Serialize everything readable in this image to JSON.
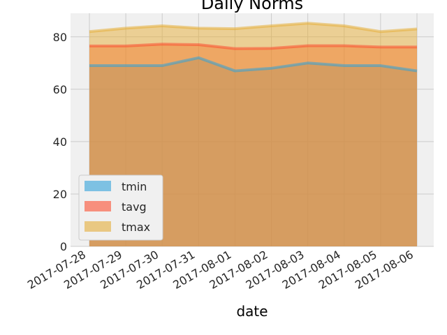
{
  "chart_data": {
    "type": "area",
    "title": "Daily Norms",
    "xlabel": "date",
    "ylabel": "",
    "categories": [
      "2017-07-28",
      "2017-07-29",
      "2017-07-30",
      "2017-07-31",
      "2017-08-01",
      "2017-08-02",
      "2017-08-03",
      "2017-08-04",
      "2017-08-05",
      "2017-08-06"
    ],
    "series": [
      {
        "name": "tmin",
        "color": "#30a2da",
        "values": [
          69,
          69,
          69,
          72,
          67,
          68,
          70,
          69,
          69,
          67
        ]
      },
      {
        "name": "tavg",
        "color": "#fc4f30",
        "values": [
          76.5,
          76.5,
          77.2,
          77.0,
          75.5,
          75.6,
          76.6,
          76.6,
          76.1,
          76.1
        ]
      },
      {
        "name": "tmax",
        "color": "#e5ae38",
        "values": [
          82,
          83.3,
          84.2,
          83.3,
          83.1,
          84.2,
          85.2,
          84.2,
          82,
          83
        ]
      }
    ],
    "ylim": [
      0,
      89
    ],
    "yticks": [
      0,
      20,
      40,
      60,
      80
    ],
    "grid": true,
    "legend_position": "lower-left",
    "stacked": false
  }
}
